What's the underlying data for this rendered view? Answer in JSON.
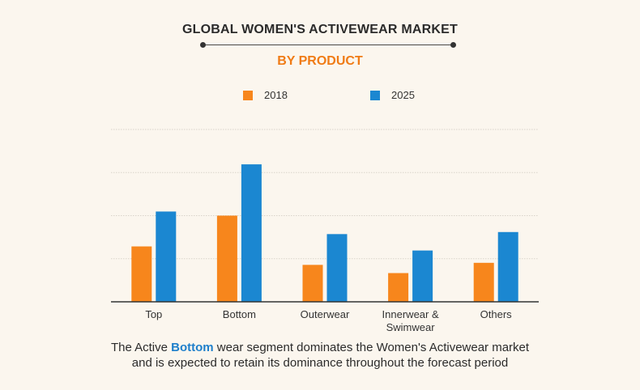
{
  "header": {
    "title": "GLOBAL WOMEN'S ACTIVEWEAR MARKET",
    "subtitle": "BY PRODUCT"
  },
  "colors": {
    "series_2018": "#f7861c",
    "series_2025": "#1b87d1",
    "grid": "#d9d3ca",
    "axis": "#333333"
  },
  "chart_data": {
    "type": "bar",
    "categories": [
      "Top",
      "Bottom",
      "Outerwear",
      "Innerwear & Swimwear",
      "Others"
    ],
    "series": [
      {
        "name": "2018",
        "values": [
          27,
          42,
          18,
          14,
          19
        ]
      },
      {
        "name": "2025",
        "values": [
          44,
          67,
          33,
          25,
          34
        ]
      }
    ],
    "ylim": [
      0,
      84
    ],
    "grid": true,
    "legend_position": "top-center"
  },
  "footer": {
    "line1_before": "The Active ",
    "line1_highlight": "Bottom",
    "line1_after": " wear segment dominates the Women's Activewear market",
    "line2": "and is expected to retain its dominance throughout the forecast period"
  }
}
